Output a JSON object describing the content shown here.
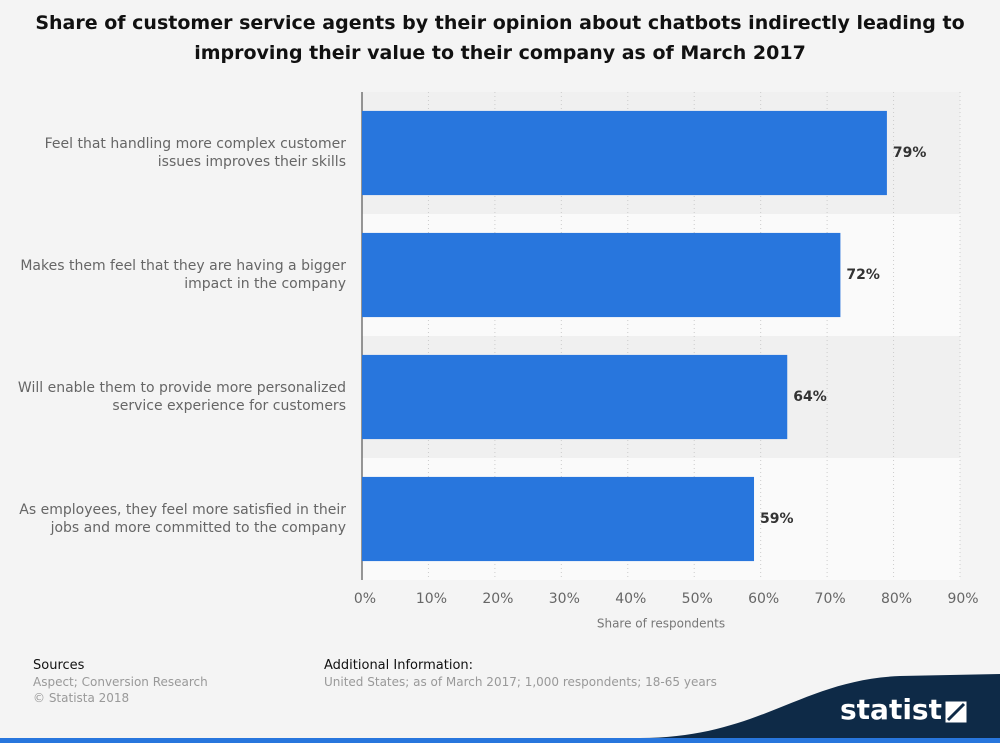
{
  "chart_data": {
    "type": "bar",
    "orientation": "horizontal",
    "title": "Share of customer service agents by their opinion about chatbots indirectly leading to improving their value to their company as of March 2017",
    "categories": [
      "Feel that handling more complex customer issues improves their skills",
      "Makes them feel that they are having a bigger impact in the company",
      "Will enable them to provide more personalized service experience for customers",
      "As employees, they feel more satisfied in their jobs and more committed to the company"
    ],
    "values": [
      79,
      72,
      64,
      59
    ],
    "value_labels": [
      "79%",
      "72%",
      "64%",
      "59%"
    ],
    "color": "#2876dd",
    "xlabel": "Share of respondents",
    "xlim": [
      0,
      90
    ],
    "xticks": [
      {
        "value": 0,
        "label": "0%"
      },
      {
        "value": 10,
        "label": "10%"
      },
      {
        "value": 20,
        "label": "20%"
      },
      {
        "value": 30,
        "label": "30%"
      },
      {
        "value": 40,
        "label": "40%"
      },
      {
        "value": 50,
        "label": "50%"
      },
      {
        "value": 60,
        "label": "60%"
      },
      {
        "value": 70,
        "label": "70%"
      },
      {
        "value": 80,
        "label": "80%"
      },
      {
        "value": 90,
        "label": "90%"
      }
    ],
    "grid": true
  },
  "footer": {
    "sources_title": "Sources",
    "sources": "Aspect; Conversion Research",
    "copyright": "© Statista 2018",
    "info_title": "Additional Information:",
    "info": "United States; as of March 2017; 1,000 respondents; 18-65 years",
    "logo": "statista"
  }
}
